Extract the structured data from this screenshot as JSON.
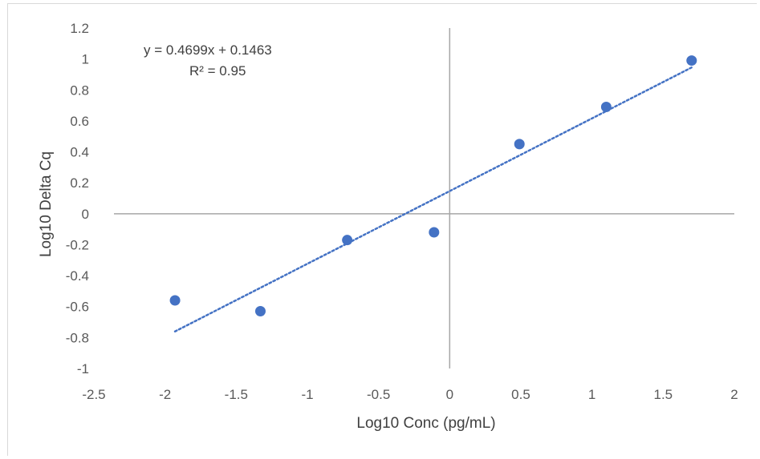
{
  "chart_data": {
    "type": "scatter",
    "title": "",
    "xlabel": "Log10 Conc (pg/mL)",
    "ylabel": "Log10 Delta Cq",
    "xlim": [
      -2.5,
      2
    ],
    "ylim": [
      -1,
      1.2
    ],
    "xticks": [
      -2.5,
      -2,
      -1.5,
      -1,
      -0.5,
      0,
      0.5,
      1,
      1.5,
      2
    ],
    "yticks": [
      -1,
      -0.8,
      -0.6,
      -0.4,
      -0.2,
      0,
      0.2,
      0.4,
      0.6,
      0.8,
      1,
      1.2
    ],
    "xtick_labels": [
      "-2.5",
      "-2",
      "-1.5",
      "-1",
      "-0.5",
      "0",
      "0.5",
      "1",
      "1.5",
      "2"
    ],
    "ytick_labels": [
      "-1",
      "-0.8",
      "-0.6",
      "-0.4",
      "-0.2",
      "0",
      "0.2",
      "0.4",
      "0.6",
      "0.8",
      "1",
      "1.2"
    ],
    "grid": false,
    "legend": "none",
    "series": [
      {
        "x": [
          -1.93,
          -1.33,
          -0.72,
          -0.11,
          0.49,
          1.1,
          1.7
        ],
        "y": [
          -0.56,
          -0.63,
          -0.17,
          -0.12,
          0.45,
          0.69,
          0.99
        ],
        "color": "#4472c4"
      }
    ],
    "trendline": {
      "type": "linear",
      "slope": 0.4699,
      "intercept": 0.1463,
      "x_range": [
        -1.93,
        1.7
      ],
      "color": "#4472c4",
      "style": "dotted",
      "equation_label": "y = 0.4699x + 0.1463",
      "r2_label": "R² = 0.95"
    }
  }
}
